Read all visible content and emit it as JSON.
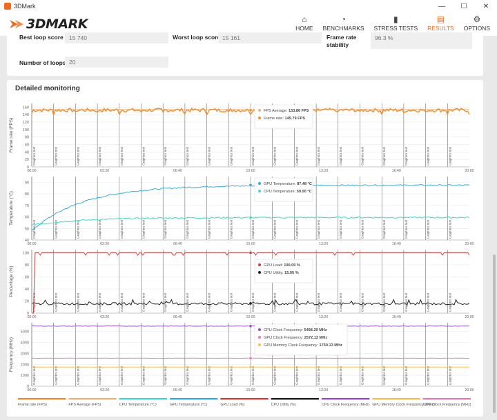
{
  "window": {
    "title": "3DMark",
    "minimize": "—",
    "maximize": "☐",
    "close": "✕"
  },
  "header": {
    "logo": "3DMARK"
  },
  "nav": [
    {
      "label": "HOME",
      "icon": "home-icon",
      "glyph": "⌂"
    },
    {
      "label": "BENCHMARKS",
      "icon": "gauge-icon",
      "glyph": "◔"
    },
    {
      "label": "STRESS TESTS",
      "icon": "bar-chart-icon",
      "glyph": "▮"
    },
    {
      "label": "RESULTS",
      "icon": "results-icon",
      "glyph": "▤"
    },
    {
      "label": "OPTIONS",
      "icon": "gear-icon",
      "glyph": "⚙"
    }
  ],
  "stats": {
    "best_loop_label": "Best loop score",
    "best_loop_value": "15 740",
    "worst_loop_label": "Worst loop score",
    "worst_loop_value": "15 161",
    "stability_label_1": "Frame rate",
    "stability_label_2": "stability",
    "stability_value": "96.3 %",
    "loops_label": "Number of loops",
    "loops_value": "20"
  },
  "monitoring": {
    "title": "Detailed monitoring"
  },
  "colors": {
    "fps": "#f08c2a",
    "fps_avg": "#f2b27a",
    "cpu_temp": "#38dcc8",
    "gpu_temp": "#30aee0",
    "gpu_load": "#d53b3b",
    "cpu_util": "#222222",
    "cpu_clock": "#9a4fc9",
    "gpu_clock": "#e27cbf",
    "gpu_mem_clock": "#f2c24a",
    "accent": "#f26b1d"
  },
  "chart_data": {
    "x_ticks": [
      "00:00",
      "03:20",
      "06:40",
      "10:00",
      "13:20",
      "16:40",
      "20:00"
    ],
    "xlim": [
      0,
      1200
    ],
    "segment_label": "Graphics test",
    "segments": 20,
    "panels": [
      {
        "id": "fps",
        "type": "line",
        "ylabel": "Frame rate (FPS)",
        "ylim": [
          0,
          170
        ],
        "yticks": [
          0,
          20,
          40,
          60,
          80,
          100,
          120,
          140,
          160
        ],
        "series": [
          {
            "name": "FPS Average",
            "legend_value": "153.86 FPS",
            "color_key": "fps_avg",
            "base": 153.86
          },
          {
            "name": "Frame rate",
            "legend_value": "145.79 FPS",
            "color_key": "fps",
            "base": 152,
            "noise": 10
          }
        ]
      },
      {
        "id": "temp",
        "type": "line",
        "ylabel": "Temperature (°C)",
        "ylim": [
          40,
          95
        ],
        "yticks": [
          40,
          50,
          60,
          70,
          80,
          90
        ],
        "series": [
          {
            "name": "GPU Temperature",
            "legend_value": "87.48 °C",
            "color_key": "gpu_temp",
            "start": 48,
            "end": 87.5
          },
          {
            "name": "CPU Temperature",
            "legend_value": "59.00 °C",
            "color_key": "cpu_temp",
            "start": 53,
            "end": 59.5
          }
        ]
      },
      {
        "id": "pct",
        "type": "line",
        "ylabel": "Percentage (%)",
        "ylim": [
          0,
          105
        ],
        "yticks": [
          0,
          20,
          40,
          60,
          80,
          100
        ],
        "series": [
          {
            "name": "GPU Load",
            "legend_value": "100.00 %",
            "color_key": "gpu_load",
            "base": 100
          },
          {
            "name": "CPU Utility",
            "legend_value": "15.95 %",
            "color_key": "cpu_util",
            "base": 15.5
          }
        ]
      },
      {
        "id": "freq",
        "type": "line",
        "ylabel": "Frequency (MHz)",
        "ylim": [
          0,
          5800
        ],
        "yticks": [
          0,
          1000,
          2000,
          3000,
          4000,
          5000
        ],
        "series": [
          {
            "name": "CPU Clock Frequency",
            "legend_value": "5498.29 MHz",
            "color_key": "cpu_clock",
            "base": 5498
          },
          {
            "name": "GPU Clock Frequency",
            "legend_value": "2572.12 MHz",
            "color_key": "gpu_clock",
            "base": 2560
          },
          {
            "name": "GPU Memory Clock Frequency",
            "legend_value": "1750.13 MHz",
            "color_key": "gpu_mem_clock",
            "base": 1750
          }
        ]
      }
    ],
    "legend": [
      {
        "label": "Frame rate (FPS)",
        "color_key": "fps"
      },
      {
        "label": "FPS Average (FPS)",
        "color_key": "fps_avg"
      },
      {
        "label": "CPU Temperature (°C)",
        "color_key": "cpu_temp"
      },
      {
        "label": "GPU Temperature (°C)",
        "color_key": "gpu_temp"
      },
      {
        "label": "GPU Load (%)",
        "color_key": "gpu_load"
      },
      {
        "label": "CPU Utility (%)",
        "color_key": "cpu_util"
      },
      {
        "label": "CPU Clock Frequency (MHz)",
        "color_key": "cpu_clock"
      },
      {
        "label": "GPU Memory Clock Frequency (MHz)",
        "color_key": "gpu_mem_clock"
      },
      {
        "label": "GPU Clock Frequency (MHz)",
        "color_key": "gpu_clock"
      }
    ]
  }
}
